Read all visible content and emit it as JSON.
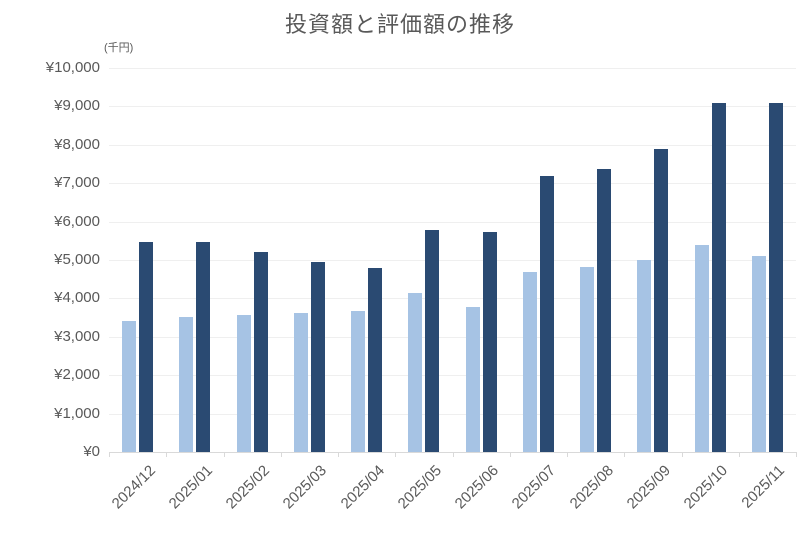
{
  "chart_data": {
    "type": "bar",
    "title": "投資額と評価額の推移",
    "unit_label": "(千円)",
    "categories": [
      "2024/12",
      "2025/01",
      "2025/02",
      "2025/03",
      "2025/04",
      "2025/05",
      "2025/06",
      "2025/07",
      "2025/08",
      "2025/09",
      "2025/10",
      "2025/11"
    ],
    "series": [
      {
        "name": "投資額",
        "color": "#a6c3e4",
        "values": [
          3400,
          3520,
          3570,
          3630,
          3680,
          4130,
          3780,
          4690,
          4830,
          5000,
          5390,
          5100
        ]
      },
      {
        "name": "評価額",
        "color": "#2a4a72",
        "values": [
          5470,
          5470,
          5200,
          4950,
          4800,
          5770,
          5730,
          7200,
          7370,
          7890,
          9080,
          9090
        ]
      }
    ],
    "xlabel": "",
    "ylabel": "",
    "ylim": [
      0,
      10000
    ],
    "ytick_step": 1000,
    "ytick_labels": [
      "¥0",
      "¥1,000",
      "¥2,000",
      "¥3,000",
      "¥4,000",
      "¥5,000",
      "¥6,000",
      "¥7,000",
      "¥8,000",
      "¥9,000",
      "¥10,000"
    ],
    "grid": true,
    "legend_position": "none",
    "colors": {
      "title_text": "#595959",
      "axis_text": "#595959",
      "gridline": "#efefef",
      "axis_line": "#d9d9d9",
      "background": "#ffffff"
    }
  }
}
